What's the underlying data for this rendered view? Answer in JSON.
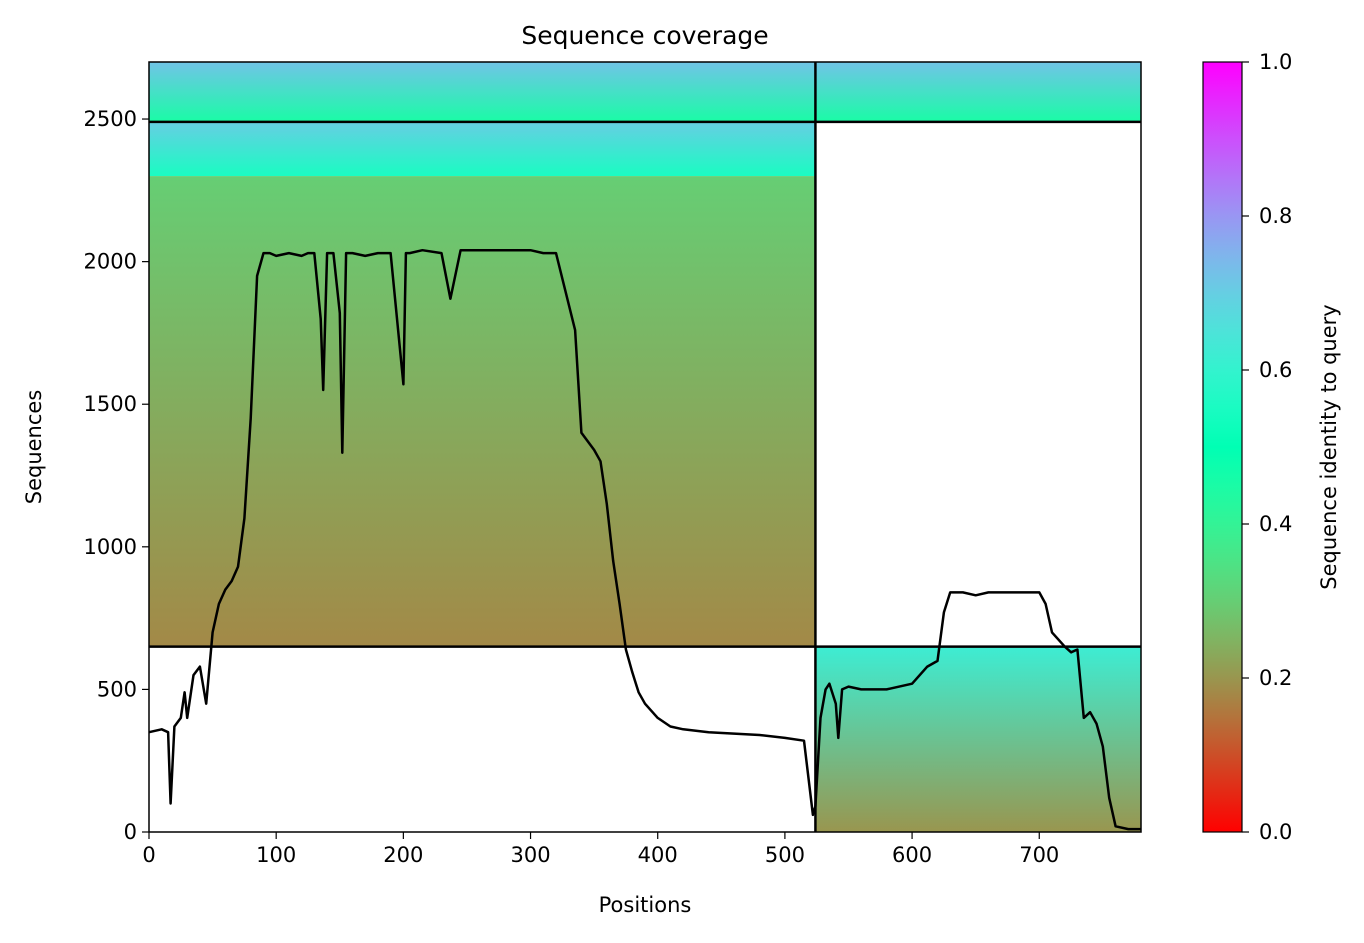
{
  "chart_data": {
    "type": "heatmap",
    "title": "Sequence coverage",
    "xlabel": "Positions",
    "ylabel": "Sequences",
    "xlim": [
      0,
      780
    ],
    "ylim": [
      0,
      2700
    ],
    "xticks": [
      0,
      100,
      200,
      300,
      400,
      500,
      600,
      700
    ],
    "yticks": [
      0,
      500,
      1000,
      1500,
      2000,
      2500
    ],
    "grid": false,
    "colorbar": {
      "label": "Sequence identity to query",
      "range": [
        0,
        1
      ],
      "ticks": [
        0.0,
        0.2,
        0.4,
        0.6,
        0.8,
        1.0
      ],
      "tick_labels": [
        "0.0",
        "0.2",
        "0.4",
        "0.6",
        "0.8",
        "1.0"
      ],
      "colormap": "rainbow"
    },
    "chain_boundaries": {
      "x": [
        524
      ],
      "y": [
        650,
        2490
      ]
    },
    "msa_blocks": [
      {
        "x": [
          0,
          524
        ],
        "y": [
          2490,
          2700
        ],
        "identity_top": 0.72,
        "identity_bottom": 0.45
      },
      {
        "x": [
          524,
          780
        ],
        "y": [
          2490,
          2700
        ],
        "identity_top": 0.72,
        "identity_bottom": 0.45
      },
      {
        "x": [
          0,
          524
        ],
        "y": [
          2300,
          2490
        ],
        "identity_top": 0.7,
        "identity_bottom": 0.55
      },
      {
        "x": [
          0,
          524
        ],
        "y": [
          650,
          2300
        ],
        "identity_top": 0.3,
        "identity_bottom": 0.18
      },
      {
        "x": [
          524,
          780
        ],
        "y": [
          0,
          650
        ],
        "identity_top": 0.62,
        "identity_bottom": 0.2
      }
    ],
    "coverage_line": {
      "x": [
        0,
        10,
        15,
        17,
        20,
        25,
        28,
        30,
        35,
        40,
        45,
        50,
        55,
        60,
        65,
        70,
        75,
        80,
        85,
        90,
        95,
        100,
        110,
        120,
        125,
        130,
        135,
        137,
        140,
        145,
        150,
        152,
        155,
        160,
        170,
        180,
        190,
        200,
        202,
        205,
        215,
        230,
        237,
        245,
        260,
        280,
        290,
        300,
        310,
        320,
        335,
        340,
        350,
        355,
        360,
        365,
        370,
        375,
        380,
        385,
        390,
        400,
        410,
        420,
        440,
        460,
        480,
        500,
        515,
        522,
        524,
        528,
        532,
        535,
        540,
        542,
        545,
        550,
        560,
        580,
        600,
        612,
        620,
        625,
        630,
        640,
        650,
        660,
        680,
        700,
        705,
        710,
        720,
        725,
        730,
        735,
        740,
        745,
        750,
        755,
        760,
        770,
        780
      ],
      "y": [
        350,
        360,
        350,
        100,
        370,
        400,
        490,
        400,
        550,
        580,
        450,
        700,
        800,
        850,
        880,
        930,
        1100,
        1450,
        1950,
        2030,
        2030,
        2020,
        2030,
        2020,
        2030,
        2030,
        1800,
        1550,
        2030,
        2030,
        1820,
        1330,
        2030,
        2030,
        2020,
        2030,
        2030,
        1570,
        2030,
        2030,
        2040,
        2030,
        1870,
        2040,
        2040,
        2040,
        2040,
        2040,
        2030,
        2030,
        1760,
        1400,
        1340,
        1300,
        1150,
        950,
        800,
        640,
        560,
        490,
        450,
        400,
        370,
        360,
        350,
        345,
        340,
        330,
        320,
        60,
        90,
        400,
        500,
        520,
        450,
        330,
        500,
        510,
        500,
        500,
        520,
        580,
        600,
        770,
        840,
        840,
        830,
        840,
        840,
        840,
        800,
        700,
        650,
        630,
        640,
        400,
        420,
        380,
        300,
        120,
        20,
        10,
        10
      ]
    }
  }
}
